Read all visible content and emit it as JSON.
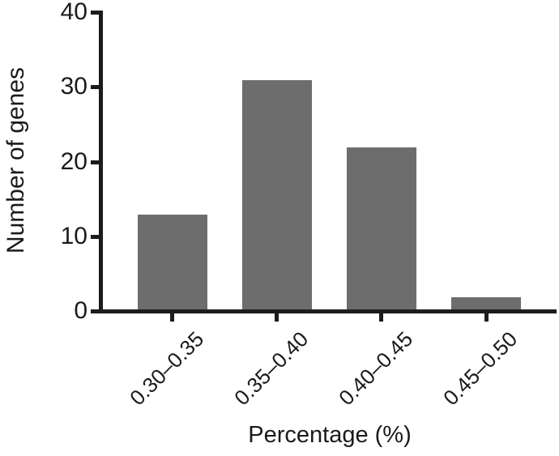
{
  "figure": {
    "background": "#ffffff"
  },
  "chart_data": {
    "type": "bar",
    "categories": [
      "0.30–0.35",
      "0.35–0.40",
      "0.40–0.45",
      "0.45–0.50"
    ],
    "values": [
      13,
      31,
      22,
      2
    ],
    "title": "",
    "xlabel": "Percentage (%)",
    "ylabel": "Number of genes",
    "yticks": [
      0,
      10,
      20,
      30,
      40
    ],
    "ylim": [
      0,
      40
    ],
    "bar_color": "#6d6d6d",
    "axis_color": "#1c1c1c",
    "text_color": "#1a1a1a",
    "grid": false,
    "legend": "none"
  }
}
